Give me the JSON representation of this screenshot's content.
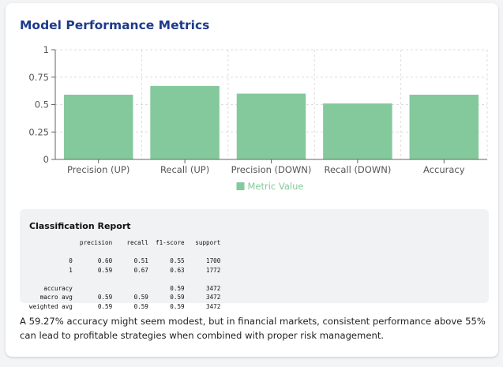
{
  "title": "Model Performance Metrics",
  "chart_data": {
    "type": "bar",
    "categories": [
      "Precision (UP)",
      "Recall (UP)",
      "Precision (DOWN)",
      "Recall (DOWN)",
      "Accuracy"
    ],
    "series": [
      {
        "name": "Metric Value",
        "values": [
          0.59,
          0.67,
          0.6,
          0.51,
          0.59
        ]
      }
    ],
    "ylim": [
      0,
      1
    ],
    "yticks": [
      0,
      0.25,
      0.5,
      0.75,
      1
    ],
    "ytick_labels": [
      "0",
      "0.25",
      "0.5",
      "0.75",
      "1"
    ],
    "grid": true,
    "legend_position": "bottom",
    "bar_color": "#84c99c"
  },
  "report": {
    "title": "Classification Report",
    "text": "              precision    recall  f1-score   support\n\n           0       0.60      0.51      0.55      1700\n           1       0.59      0.67      0.63      1772\n\n    accuracy                           0.59      3472\n   macro avg       0.59      0.59      0.59      3472\nweighted avg       0.59      0.59      0.59      3472"
  },
  "note": "A 59.27% accuracy might seem modest, but in financial markets, consistent performance above 55% can lead to profitable strategies when combined with proper risk management."
}
